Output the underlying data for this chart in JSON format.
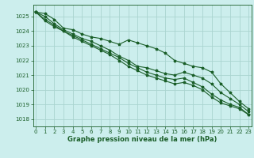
{
  "background_color": "#cceeed",
  "grid_color": "#aad4d0",
  "line_color": "#1a5e28",
  "text_color": "#1a5e28",
  "xlabel": "Graphe pression niveau de la mer (hPa)",
  "ylim": [
    1017.5,
    1025.8
  ],
  "xlim": [
    -0.3,
    23.3
  ],
  "yticks": [
    1018,
    1019,
    1020,
    1021,
    1022,
    1023,
    1024,
    1025
  ],
  "xticks": [
    0,
    1,
    2,
    3,
    4,
    5,
    6,
    7,
    8,
    9,
    10,
    11,
    12,
    13,
    14,
    15,
    16,
    17,
    18,
    19,
    20,
    21,
    22,
    23
  ],
  "series": [
    [
      1025.3,
      1025.2,
      1024.8,
      1024.2,
      1024.1,
      1023.8,
      1023.6,
      1023.5,
      1023.3,
      1023.1,
      1023.4,
      1023.2,
      1023.0,
      1022.8,
      1022.5,
      1022.0,
      1021.8,
      1021.6,
      1021.5,
      1021.2,
      1020.4,
      1019.8,
      1019.2,
      1018.7
    ],
    [
      1025.3,
      1025.0,
      1024.5,
      1024.1,
      1023.8,
      1023.5,
      1023.3,
      1023.0,
      1022.7,
      1022.3,
      1022.0,
      1021.6,
      1021.5,
      1021.3,
      1021.1,
      1021.0,
      1021.2,
      1021.0,
      1020.8,
      1020.4,
      1019.8,
      1019.4,
      1019.0,
      1018.5
    ],
    [
      1025.3,
      1024.8,
      1024.4,
      1024.0,
      1023.7,
      1023.4,
      1023.1,
      1022.8,
      1022.5,
      1022.2,
      1021.8,
      1021.5,
      1021.2,
      1021.0,
      1020.8,
      1020.7,
      1020.8,
      1020.5,
      1020.2,
      1019.7,
      1019.3,
      1019.0,
      1018.8,
      1018.3
    ],
    [
      1025.3,
      1024.7,
      1024.3,
      1024.0,
      1023.6,
      1023.3,
      1023.0,
      1022.7,
      1022.4,
      1022.0,
      1021.6,
      1021.3,
      1021.0,
      1020.8,
      1020.6,
      1020.4,
      1020.5,
      1020.3,
      1020.0,
      1019.5,
      1019.1,
      1018.9,
      1018.7,
      1018.3
    ]
  ]
}
